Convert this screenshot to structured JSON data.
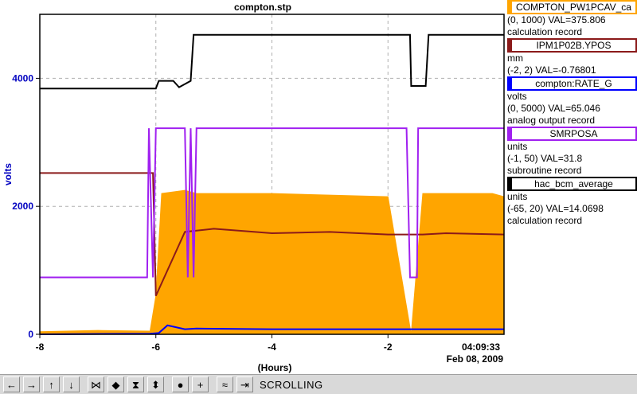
{
  "chart_data": {
    "type": "line",
    "title": "compton.stp",
    "ylabel": "volts",
    "xlabel": "(Hours)",
    "xlim": [
      -8,
      0
    ],
    "ylim": [
      0,
      5000
    ],
    "y_ticks": [
      0,
      2000,
      4000
    ],
    "y_tick_labels": [
      "0",
      "2000",
      "4000"
    ],
    "x_ticks": [
      -8,
      -6,
      -4,
      -2
    ],
    "x_tick_labels": [
      "-8",
      "-6",
      "-4",
      "-2"
    ],
    "grid": true,
    "time_label": "04:09:33",
    "date_label": "Feb 08, 2009",
    "axis_color": "#0000c0",
    "series": [
      {
        "name": "COMPTON_PW1PCAV_ca",
        "color": "#ffa500",
        "style": "filled-dense",
        "x": [
          -8,
          -7.0,
          -6.1,
          -6.0,
          -5.9,
          -5.5,
          -5.3,
          -4.0,
          -2.0,
          -1.6,
          -1.4,
          -0.2,
          0
        ],
        "y": [
          40,
          60,
          50,
          600,
          2200,
          2250,
          2200,
          2200,
          2150,
          0,
          2200,
          2200,
          2150
        ]
      },
      {
        "name": "IPM1P02B.YPOS",
        "color": "#8b1a1a",
        "x": [
          -8,
          -6.05,
          -6.0,
          -5.5,
          -5.0,
          -4.0,
          -3.0,
          -2.0,
          -1.6,
          -1.4,
          -1.0,
          0
        ],
        "y": [
          2520,
          2520,
          600,
          1600,
          1650,
          1580,
          1600,
          1560,
          1560,
          1560,
          1580,
          1560
        ]
      },
      {
        "name": "compton:RATE_G",
        "color": "#0000ff",
        "x": [
          -8,
          -6.1,
          -5.95,
          -5.8,
          -5.5,
          -5.3,
          -4.0,
          -2.0,
          -1.6,
          0
        ],
        "y": [
          0,
          10,
          20,
          140,
          80,
          90,
          80,
          80,
          80,
          80
        ]
      },
      {
        "name": "SMRPOSA",
        "color": "#a020f0",
        "x": [
          -8,
          -6.15,
          -6.12,
          -6.05,
          -6.0,
          -5.95,
          -5.5,
          -5.45,
          -5.4,
          -5.35,
          -5.3,
          -1.68,
          -1.62,
          -1.5,
          -1.48,
          0
        ],
        "y": [
          890,
          890,
          3220,
          890,
          3220,
          3220,
          3220,
          890,
          3220,
          890,
          3220,
          3220,
          890,
          890,
          3220,
          3220
        ]
      },
      {
        "name": "hac_bcm_average",
        "color": "#000000",
        "x": [
          -8,
          -6.0,
          -5.95,
          -5.7,
          -5.6,
          -5.4,
          -5.35,
          -5.3,
          -4.0,
          -3.0,
          -2.0,
          -1.62,
          -1.6,
          -1.35,
          -1.3,
          -0.7,
          -0.6,
          0
        ],
        "y": [
          3840,
          3840,
          3960,
          3960,
          3860,
          3960,
          4680,
          4680,
          4680,
          4680,
          4680,
          4680,
          3880,
          3880,
          4680,
          4680,
          4680,
          4680
        ]
      }
    ]
  },
  "legend": [
    {
      "name": "COMPTON_PW1PCAV_ca",
      "border": "#ffa500",
      "lines": [
        "(0, 1000) VAL=375.806",
        "calculation record"
      ]
    },
    {
      "name": "IPM1P02B.YPOS",
      "border": "#8b1a1a",
      "lines": [
        "mm",
        "(-2, 2) VAL=-0.76801"
      ]
    },
    {
      "name": "compton:RATE_G",
      "border": "#0000ff",
      "lines": [
        "volts",
        "(0, 5000) VAL=65.046",
        "analog output record"
      ]
    },
    {
      "name": "SMRPOSA",
      "border": "#a020f0",
      "lines": [
        "units",
        "(-1, 50) VAL=31.8",
        "subroutine record"
      ]
    },
    {
      "name": "hac_bcm_average",
      "border": "#000000",
      "lines": [
        "units",
        "(-65, 20) VAL=14.0698",
        "calculation record"
      ]
    }
  ],
  "toolbar": {
    "buttons": [
      {
        "icon": "arrow-left-icon",
        "glyph": "←"
      },
      {
        "icon": "arrow-right-icon",
        "glyph": "→"
      },
      {
        "icon": "arrow-up-icon",
        "glyph": "↑"
      },
      {
        "icon": "arrow-down-icon",
        "glyph": "↓"
      },
      {
        "icon": "zoom-in-horizontal-icon",
        "glyph": "⋈"
      },
      {
        "icon": "zoom-out-horizontal-icon",
        "glyph": "◆"
      },
      {
        "icon": "zoom-in-vertical-icon",
        "glyph": "⧗"
      },
      {
        "icon": "zoom-out-vertical-icon",
        "glyph": "⬍"
      },
      {
        "icon": "config-icon",
        "glyph": "●"
      },
      {
        "icon": "add-icon",
        "glyph": "+"
      },
      {
        "icon": "auto-scale-icon",
        "glyph": "≈"
      },
      {
        "icon": "scroll-to-end-icon",
        "glyph": "⇥"
      }
    ],
    "status": "SCROLLING"
  }
}
